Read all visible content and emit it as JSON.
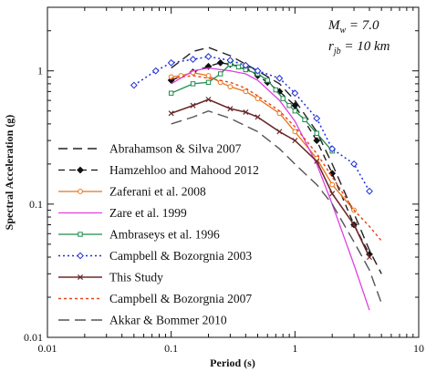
{
  "chart_data": {
    "type": "line",
    "xlabel": "Period (s)",
    "ylabel": "Spectral Acceleration (g)",
    "xscale": "log",
    "yscale": "log",
    "xlim": [
      0.01,
      10
    ],
    "ylim": [
      0.01,
      3
    ],
    "x_ticks": [
      {
        "v": 0.01,
        "label": "0.01"
      },
      {
        "v": 0.1,
        "label": "0.1"
      },
      {
        "v": 1,
        "label": "1"
      },
      {
        "v": 10,
        "label": "10"
      }
    ],
    "y_ticks": [
      {
        "v": 0.01,
        "label": "0.01"
      },
      {
        "v": 0.1,
        "label": "0.1"
      },
      {
        "v": 1,
        "label": "1"
      }
    ],
    "annotation": {
      "line1_main": "M",
      "line1_sub": "w",
      "line1_rest": " = 7.0",
      "line2_main": "r",
      "line2_sub": "jb",
      "line2_rest": " = 10 km"
    },
    "legend_position": "bottom-left",
    "series": [
      {
        "name": "Abrahamson & Silva 2007",
        "color": "#222222",
        "dash": "10,6",
        "marker": "none",
        "width": 1.4,
        "x": [
          0.1,
          0.15,
          0.2,
          0.3,
          0.5,
          0.75,
          1,
          1.5,
          2,
          3,
          4,
          5
        ],
        "y": [
          1.05,
          1.4,
          1.5,
          1.3,
          1.0,
          0.8,
          0.6,
          0.35,
          0.2,
          0.085,
          0.045,
          0.03
        ]
      },
      {
        "name": "Hamzehloo and Mahood 2012",
        "color": "#111111",
        "dash": "7,5",
        "marker": "diamond-filled",
        "width": 1.3,
        "x": [
          0.1,
          0.15,
          0.2,
          0.25,
          0.3,
          0.4,
          0.5,
          0.6,
          0.75,
          1,
          1.5,
          2,
          3,
          4
        ],
        "y": [
          0.85,
          0.98,
          1.08,
          1.15,
          1.12,
          1.05,
          0.92,
          0.82,
          0.7,
          0.55,
          0.3,
          0.17,
          0.07,
          0.042
        ]
      },
      {
        "name": "Zaferani et al. 2008",
        "color": "#e8751a",
        "dash": "",
        "marker": "circle-open",
        "width": 1.3,
        "x": [
          0.1,
          0.12,
          0.15,
          0.2,
          0.25,
          0.3,
          0.4,
          0.5,
          0.75,
          1,
          1.5,
          2,
          3
        ],
        "y": [
          0.9,
          0.92,
          0.97,
          0.92,
          0.82,
          0.76,
          0.7,
          0.62,
          0.48,
          0.35,
          0.22,
          0.14,
          0.09
        ]
      },
      {
        "name": "Zare et al. 1999",
        "color": "#e040e0",
        "dash": "",
        "marker": "none",
        "width": 1.3,
        "x": [
          0.1,
          0.15,
          0.2,
          0.3,
          0.4,
          0.5,
          0.75,
          1,
          1.5,
          2,
          3,
          4
        ],
        "y": [
          0.8,
          1.0,
          1.05,
          1.0,
          0.95,
          0.85,
          0.6,
          0.42,
          0.2,
          0.1,
          0.035,
          0.016
        ]
      },
      {
        "name": "Ambraseys et al. 1996",
        "color": "#1e8a4c",
        "dash": "",
        "marker": "square-open",
        "width": 1.3,
        "x": [
          0.1,
          0.15,
          0.2,
          0.25,
          0.3,
          0.35,
          0.4,
          0.5,
          0.6,
          0.7,
          0.8,
          0.9,
          1.0,
          1.2,
          1.5,
          2.0
        ],
        "y": [
          0.68,
          0.8,
          0.82,
          0.95,
          1.12,
          1.07,
          1.02,
          0.95,
          0.85,
          0.72,
          0.62,
          0.55,
          0.5,
          0.43,
          0.34,
          0.25
        ]
      },
      {
        "name": "Campbell & Bozorgnia 2003",
        "color": "#1e2fd6",
        "dash": "2,3",
        "marker": "diamond-open",
        "width": 1.5,
        "x": [
          0.05,
          0.075,
          0.1,
          0.15,
          0.2,
          0.3,
          0.4,
          0.5,
          0.75,
          1,
          1.5,
          2,
          3,
          4
        ],
        "y": [
          0.78,
          1.0,
          1.15,
          1.22,
          1.28,
          1.2,
          1.1,
          1.0,
          0.88,
          0.68,
          0.44,
          0.26,
          0.2,
          0.125
        ]
      },
      {
        "name": "This Study",
        "color": "#6b2a2a",
        "dash": "",
        "marker": "x",
        "width": 1.6,
        "x": [
          0.1,
          0.15,
          0.2,
          0.3,
          0.4,
          0.5,
          0.75,
          1,
          1.5,
          2,
          3,
          4
        ],
        "y": [
          0.48,
          0.55,
          0.61,
          0.52,
          0.49,
          0.45,
          0.35,
          0.3,
          0.21,
          0.12,
          0.07,
          0.04
        ]
      },
      {
        "name": "Campbell & Bozorgnia 2007",
        "color": "#e8421a",
        "dash": "3,3",
        "marker": "none",
        "width": 1.4,
        "x": [
          0.1,
          0.15,
          0.2,
          0.3,
          0.4,
          0.5,
          0.75,
          1,
          1.5,
          2,
          3,
          4,
          5
        ],
        "y": [
          0.88,
          0.92,
          0.88,
          0.82,
          0.74,
          0.65,
          0.5,
          0.38,
          0.24,
          0.16,
          0.09,
          0.068,
          0.053
        ]
      },
      {
        "name": "Akkar & Bommer 2010",
        "color": "#555555",
        "dash": "12,6",
        "marker": "none",
        "width": 1.4,
        "x": [
          0.1,
          0.15,
          0.2,
          0.3,
          0.5,
          0.75,
          1,
          1.5,
          2,
          3,
          4,
          5
        ],
        "y": [
          0.4,
          0.45,
          0.5,
          0.44,
          0.35,
          0.26,
          0.2,
          0.14,
          0.1,
          0.052,
          0.032,
          0.018
        ]
      }
    ]
  }
}
